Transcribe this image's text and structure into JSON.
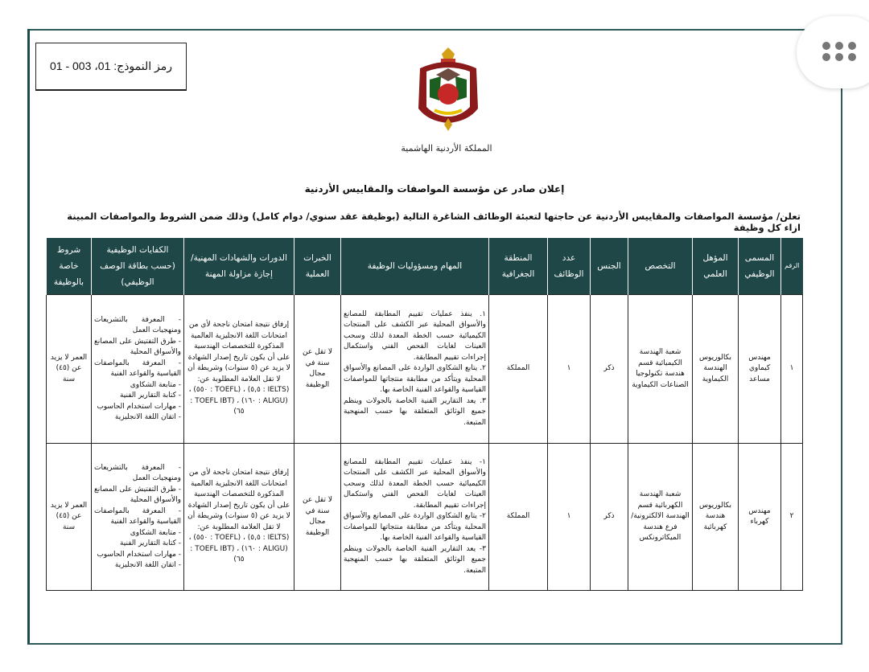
{
  "form_code": "رمز النموذج: 01، 003 - 01",
  "emblem_caption": "المملكة الأردنية الهاشمية",
  "title": "إعلان صادر عن مؤسسة المواصفات والمقاييس الأردنية",
  "intro": "تعلن/ مؤسسة المواصفات والمقاييس الأردنية عن حاجتها لتعبئة الوظائف الشاغرة التالية (بوظيفة عقد سنوي/ دوام كامل) وذلك ضمن الشروط والمواصفات المبينة ازاء كل وظيفة",
  "colors": {
    "header_bg": "#1f4747",
    "frame": "#1d4b4b"
  },
  "table": {
    "headers": [
      "الرقم",
      "المسمى الوظيفي",
      "المؤهل العلمي",
      "التخصص",
      "الجنس",
      "عدد الوظائف",
      "المنطقة الجغرافية",
      "المهام ومسؤوليات الوظيفة",
      "الخبرات العملية",
      "الدورات والشهادات المهنية/إجازة مزاولة المهنة",
      "الكفايات الوظيفية (حسب بطاقة الوصف الوظيفي)",
      "شروط خاصة بالوظيفة"
    ],
    "rows": [
      {
        "num": "١",
        "title": "مهندس كيماوي مساعد",
        "qualification": "بكالوريوس الهندسة الكيماوية",
        "specialization": "شعبة الهندسة الكيميائية قسم هندسة تكنولوجيا الصناعات الكيماوية",
        "gender": "ذكر",
        "count": "١",
        "region": "المملكة",
        "tasks": "١. ينفذ عمليات تقييم المطابقة للمصانع والأسواق المحلية عبر الكشف على المنتجات الكيميائية حسب الخطة المعدة لذلك وسحب العينات لغايات الفحص الفني واستكمال إجراءات تقييم المطابقة.\n٢. يتابع الشكاوى الواردة على المصانع والأسواق المحلية ويتأكد من مطابقة منتجاتها للمواصفات القياسية والقواعد الفنية الخاصة بها.\n٣. يعد التقارير الفنية الخاصة بالجولات وينظم جميع الوثائق المتعلقة بها حسب المنهجية المتبعة.",
        "experience": "لا تقل عن سنة في مجال الوظيفة",
        "courses": "إرفاق نتيجة امتحان ناجحة لأي من امتحانات اللغة الانجليزية العالمية المذكورة للتخصصات الهندسية على أن يكون تاريخ إصدار الشهادة لا يزيد عن (٥ سنوات) وشريطة أن لا تقل العلامة المطلوبة عن:\n(IELTS : ٥,٥) ، (TOEFL : ٥٥٠) ، (ALIGU : ١٦٠) ، (TOEFL IBT : ٦٥)",
        "competencies": "- المعرفة بالتشريعات ومنهجيات العمل\n- طرق التفتيش على المصانع والأسواق المحلية\n- المعرفة بالمواصفات القياسية والقواعد الفنية\n- متابعة الشكاوى\n- كتابة التقارير الفنية\n- مهارات استخدام الحاسوب\n- اتقان اللغة الانجليزية",
        "conditions": "العمر لا يزيد عن (٤٥) سنة"
      },
      {
        "num": "٢",
        "title": "مهندس كهرباء",
        "qualification": "بكالوريوس هندسة كهربائية",
        "specialization": "شعبة الهندسة الكهربائية قسم الهندسة الالكترونية/ فرع هندسة الميكاترونكس",
        "gender": "ذكر",
        "count": "١",
        "region": "المملكة",
        "tasks": "١- ينفذ عمليات تقييم المطابقة للمصانع والأسواق المحلية عبر الكشف على المنتجات الكيميائية حسب الخطة المعدة لذلك وسحب العينات لغايات الفحص الفني واستكمال إجراءات تقييم المطابقة.\n٢- يتابع الشكاوى الواردة على المصانع والأسواق المحلية ويتأكد من مطابقة منتجاتها للمواصفات القياسية والقواعد الفنية الخاصة بها.\n٣- يعد التقارير الفنية الخاصة بالجولات وينظم جميع الوثائق المتعلقة بها حسب المنهجية المتبعة.",
        "experience": "لا تقل عن سنة في مجال الوظيفة",
        "courses": "إرفاق نتيجة امتحان ناجحة لأي من امتحانات اللغة الانجليزية العالمية المذكورة للتخصصات الهندسية على أن يكون تاريخ إصدار الشهادة لا يزيد عن (٥ سنوات) وشريطة أن لا تقل العلامة المطلوبة عن:\n(IELTS : ٥,٥) ، (TOEFL : ٥٥٠) ، (ALIGU : ١٦٠) ، (TOEFL IBT : ٦٥)",
        "competencies": "- المعرفة بالتشريعات ومنهجيات العمل\n- طرق التفتيش على المصانع والأسواق المحلية\n- المعرفة بالمواصفات القياسية والقواعد الفنية\n- متابعة الشكاوى\n- كتابة التقارير الفنية\n- مهارات استخدام الحاسوب\n- اتقان اللغة الانجليزية",
        "conditions": "العمر لا يزيد عن (٤٥) سنة"
      }
    ]
  },
  "menu_icon": "more-dots-icon"
}
